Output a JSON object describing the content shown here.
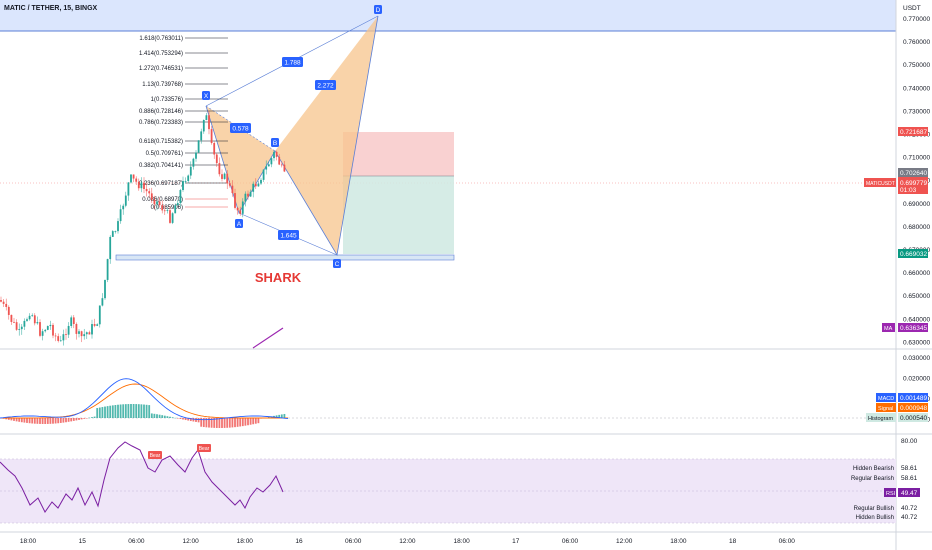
{
  "header": {
    "title": "MATIC / TETHER, 15, BINGX"
  },
  "price_axis": {
    "currency": "USDT",
    "ticks": [
      "0.770000",
      "0.760000",
      "0.750000",
      "0.740000",
      "0.730000",
      "0.720000",
      "0.710000",
      "0.700000",
      "0.690000",
      "0.680000",
      "0.670000",
      "0.660000",
      "0.650000",
      "0.640000",
      "0.630000"
    ],
    "tags": {
      "stop": "0.721687",
      "entry": "0.702640",
      "symbol": "MATICUSDT",
      "last": "0.699779",
      "countdown": "01:03",
      "target": "0.669032",
      "ma_label": "MA",
      "ma": "0.636345"
    }
  },
  "macd_axis": {
    "ticks": [
      "0.030000",
      "0.020000",
      "0.010000",
      "0.000000"
    ],
    "tags": {
      "macd_label": "MACD",
      "macd": "0.001489",
      "signal_label": "Signal",
      "signal": "0.000948",
      "hist_label": "Histogram",
      "hist": "0.000540"
    }
  },
  "rsi_axis": {
    "tick_top": "80.00",
    "rows": [
      {
        "label": "Hidden Bearish",
        "value": "58.61"
      },
      {
        "label": "Regular Bearish",
        "value": "58.61"
      }
    ],
    "rsi_label": "RSI",
    "rsi_value": "49.47",
    "rows_bottom": [
      {
        "label": "Regular Bullish",
        "value": "40.72"
      },
      {
        "label": "Hidden Bullish",
        "value": "40.72"
      }
    ]
  },
  "time_axis": [
    "18:00",
    "15",
    "06:00",
    "12:00",
    "18:00",
    "16",
    "06:00",
    "12:00",
    "18:00",
    "17",
    "06:00",
    "12:00",
    "18:00",
    "18",
    "06:00"
  ],
  "pattern": {
    "name": "SHARK",
    "points": {
      "X": "X",
      "A": "A",
      "B": "B",
      "C": "C",
      "D": "D"
    },
    "ratios": {
      "xb": "0.578",
      "ac": "1.645",
      "xd": "1.788",
      "bd": "2.272"
    }
  },
  "fib_levels": [
    {
      "label": "1.618(0.763011)"
    },
    {
      "label": "1.414(0.753294)"
    },
    {
      "label": "1.272(0.746531)"
    },
    {
      "label": "1.13(0.739768)"
    },
    {
      "label": "1(0.733576)"
    },
    {
      "label": "0.886(0.728146)"
    },
    {
      "label": "0.786(0.723383)"
    },
    {
      "label": "0.618(0.715382)"
    },
    {
      "label": "0.5(0.709761)"
    },
    {
      "label": "0.382(0.704141)"
    },
    {
      "label": "0.236(0.697187)"
    },
    {
      "label": "0.086(0.68970)"
    },
    {
      "label": "0(0.685906)"
    }
  ],
  "rsi_badges": {
    "bear1": "Bear",
    "bear2": "Bear"
  },
  "colors": {
    "bull": "#26a69a",
    "bear": "#ef5350",
    "pattern_fill": "#f7c48c",
    "pattern_edge": "#5b7fd6",
    "badge": "#2962ff",
    "stop_zone": "#f8c9c9",
    "target_zone": "#cfe9e2",
    "rsi_band": "#efe6f8",
    "rsi_line": "#7b1fa2",
    "macd_line": "#2962ff",
    "signal_line": "#ff6d00"
  },
  "chart_data": {
    "type": "candlestick",
    "title": "MATIC / TETHER, 15, BINGX",
    "ylabel": "USDT",
    "ylim": [
      0.625,
      0.775
    ],
    "harmonic_pattern": {
      "name": "SHARK",
      "X": 0.7336,
      "A": 0.6859,
      "B": 0.7125,
      "C": 0.666,
      "D": 0.7727,
      "ratios": {
        "XB": 0.578,
        "AC": 1.645,
        "XD": 1.788,
        "BD": 2.272
      }
    },
    "trade": {
      "stop": 0.721687,
      "entry": 0.70264,
      "target": 0.669032,
      "last": 0.699779
    },
    "indicators": {
      "MA": 0.636345,
      "MACD": {
        "macd": 0.001489,
        "signal": 0.000948,
        "histogram": 0.00054
      },
      "RSI": {
        "value": 49.47,
        "hidden_bearish": 58.61,
        "regular_bearish": 58.61,
        "regular_bullish": 40.72,
        "hidden_bullish": 40.72
      }
    }
  }
}
